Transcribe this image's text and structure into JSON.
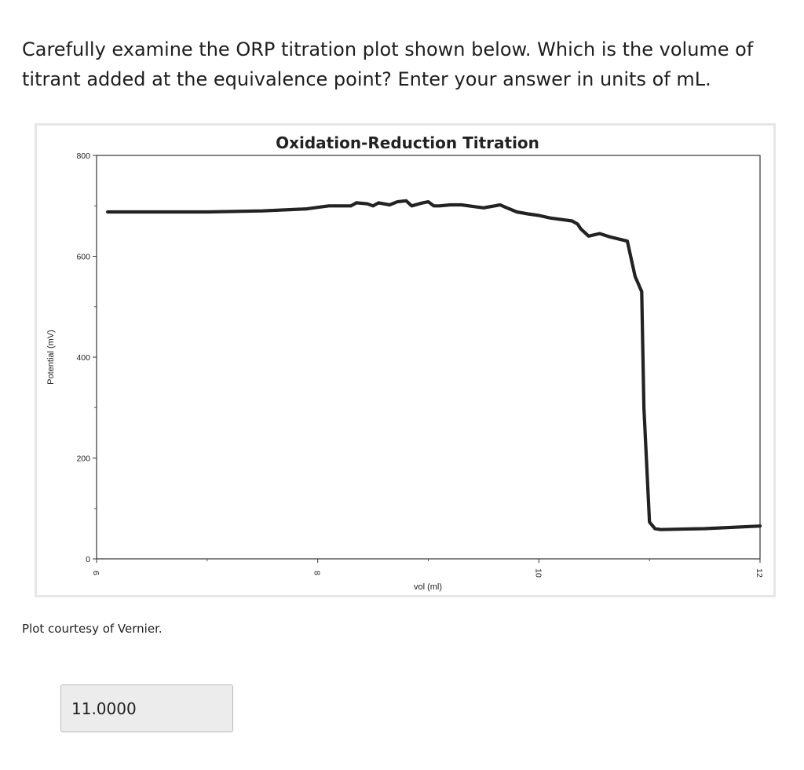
{
  "question": {
    "text": "Carefully examine the ORP titration plot shown below. Which is the volume of titrant added at the equivalence point? Enter your answer in units of mL."
  },
  "credit": "Plot courtesy of Vernier.",
  "answer": {
    "value": "11.0000"
  },
  "chart_data": {
    "type": "line",
    "title": "Oxidation-Reduction Titration",
    "xlabel": "vol (ml)",
    "ylabel": "Potential (mV)",
    "xlim": [
      6,
      12
    ],
    "ylim": [
      0,
      800
    ],
    "xticks": [
      6,
      8,
      10,
      12
    ],
    "yticks": [
      0,
      200,
      400,
      600,
      800
    ],
    "grid": false,
    "line_color": "#222222",
    "series": [
      {
        "x": [
          6.1,
          6.5,
          7.0,
          7.5,
          7.9,
          8.0,
          8.1,
          8.3,
          8.35,
          8.45,
          8.5,
          8.55,
          8.65,
          8.72,
          8.8,
          8.85,
          8.95,
          9.0,
          9.05,
          9.1,
          9.2,
          9.3,
          9.4,
          9.5,
          9.55,
          9.6,
          9.65,
          9.7,
          9.8,
          9.9,
          10.0,
          10.1,
          10.3,
          10.35,
          10.38,
          10.45,
          10.55,
          10.65,
          10.8,
          10.83,
          10.87,
          10.93,
          10.95,
          11.0,
          11.05,
          11.1,
          11.5,
          12.0
        ],
        "y": [
          688,
          688,
          688,
          690,
          694,
          697,
          700,
          700,
          706,
          704,
          700,
          706,
          702,
          708,
          710,
          700,
          706,
          708,
          700,
          700,
          702,
          702,
          699,
          696,
          698,
          700,
          702,
          697,
          688,
          684,
          681,
          676,
          670,
          664,
          654,
          640,
          645,
          638,
          630,
          600,
          560,
          530,
          300,
          73,
          60,
          58,
          60,
          65
        ]
      }
    ]
  }
}
